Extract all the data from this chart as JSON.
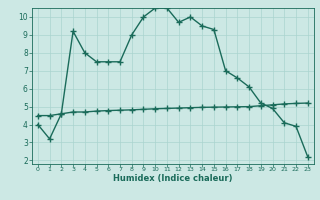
{
  "line1_x": [
    0,
    1,
    2,
    3,
    4,
    5,
    6,
    7,
    8,
    9,
    10,
    11,
    12,
    13,
    14,
    15,
    16,
    17,
    18,
    19,
    20,
    21,
    22,
    23
  ],
  "line1_y": [
    4.0,
    3.2,
    4.6,
    9.2,
    8.0,
    7.5,
    7.5,
    7.5,
    9.0,
    10.0,
    10.5,
    10.5,
    9.7,
    10.0,
    9.5,
    9.3,
    7.0,
    6.6,
    6.1,
    5.2,
    4.9,
    4.1,
    3.9,
    2.2
  ],
  "line2_x": [
    0,
    1,
    2,
    3,
    4,
    5,
    6,
    7,
    8,
    9,
    10,
    11,
    12,
    13,
    14,
    15,
    16,
    17,
    18,
    19,
    20,
    21,
    22,
    23
  ],
  "line2_y": [
    4.5,
    4.5,
    4.6,
    4.7,
    4.7,
    4.75,
    4.78,
    4.8,
    4.82,
    4.85,
    4.88,
    4.9,
    4.92,
    4.94,
    4.96,
    4.97,
    4.98,
    4.99,
    5.0,
    5.05,
    5.1,
    5.15,
    5.18,
    5.2
  ],
  "line_color": "#1a6b5a",
  "bg_color": "#cce8e4",
  "grid_color": "#aad4cf",
  "xlabel": "Humidex (Indice chaleur)",
  "xlim": [
    0,
    23
  ],
  "ylim": [
    2,
    10
  ],
  "xticks": [
    0,
    1,
    2,
    3,
    4,
    5,
    6,
    7,
    8,
    9,
    10,
    11,
    12,
    13,
    14,
    15,
    16,
    17,
    18,
    19,
    20,
    21,
    22,
    23
  ],
  "yticks": [
    2,
    3,
    4,
    5,
    6,
    7,
    8,
    9,
    10
  ],
  "marker": "+",
  "markersize": 4,
  "linewidth": 1.0
}
